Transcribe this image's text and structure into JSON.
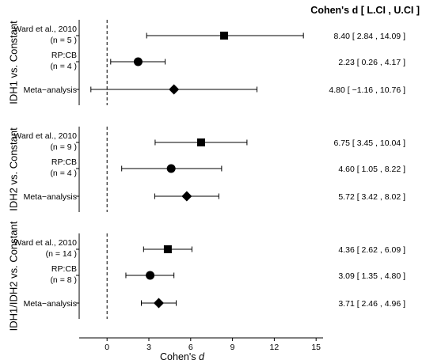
{
  "chart_data": {
    "type": "forest",
    "xlabel": "Cohen's",
    "xlabel_italic": "d",
    "column_header": "Cohen's d [ L.CI , U.CI ]",
    "xlim": [
      -2,
      15.5
    ],
    "xticks": [
      0,
      3,
      6,
      9,
      12,
      15
    ],
    "reference_line": 0,
    "panels": [
      {
        "label": "IDH1 vs. Constant",
        "rows": [
          {
            "study": "Ward et al., 2010",
            "n": "(n = 5 )",
            "marker": "square",
            "d": 8.4,
            "lci": 2.84,
            "uci": 14.09,
            "text": "8.40 [ 2.84 , 14.09 ]"
          },
          {
            "study": "RP:CB",
            "n": "(n = 4 )",
            "marker": "circle",
            "d": 2.23,
            "lci": 0.26,
            "uci": 4.17,
            "text": "2.23 [ 0.26 , 4.17 ]"
          },
          {
            "study": "Meta−analysis",
            "n": "",
            "marker": "diamond",
            "d": 4.8,
            "lci": -1.16,
            "uci": 10.76,
            "text": "4.80 [ −1.16 , 10.76 ]"
          }
        ]
      },
      {
        "label": "IDH2 vs. Constant",
        "rows": [
          {
            "study": "Ward et al., 2010",
            "n": "(n = 9 )",
            "marker": "square",
            "d": 6.75,
            "lci": 3.45,
            "uci": 10.04,
            "text": "6.75 [ 3.45 , 10.04 ]"
          },
          {
            "study": "RP:CB",
            "n": "(n = 4 )",
            "marker": "circle",
            "d": 4.6,
            "lci": 1.05,
            "uci": 8.22,
            "text": "4.60 [ 1.05 , 8.22 ]"
          },
          {
            "study": "Meta−analysis",
            "n": "",
            "marker": "diamond",
            "d": 5.72,
            "lci": 3.42,
            "uci": 8.02,
            "text": "5.72 [ 3.42 , 8.02 ]"
          }
        ]
      },
      {
        "label": "IDH1/IDH2 vs. Constant",
        "rows": [
          {
            "study": "Ward et al., 2010",
            "n": "(n = 14 )",
            "marker": "square",
            "d": 4.36,
            "lci": 2.62,
            "uci": 6.09,
            "text": "4.36 [ 2.62 , 6.09 ]"
          },
          {
            "study": "RP:CB",
            "n": "(n = 8 )",
            "marker": "circle",
            "d": 3.09,
            "lci": 1.35,
            "uci": 4.8,
            "text": "3.09 [ 1.35 , 4.80 ]"
          },
          {
            "study": "Meta−analysis",
            "n": "",
            "marker": "diamond",
            "d": 3.71,
            "lci": 2.46,
            "uci": 4.96,
            "text": "3.71 [ 2.46 , 4.96 ]"
          }
        ]
      }
    ]
  }
}
